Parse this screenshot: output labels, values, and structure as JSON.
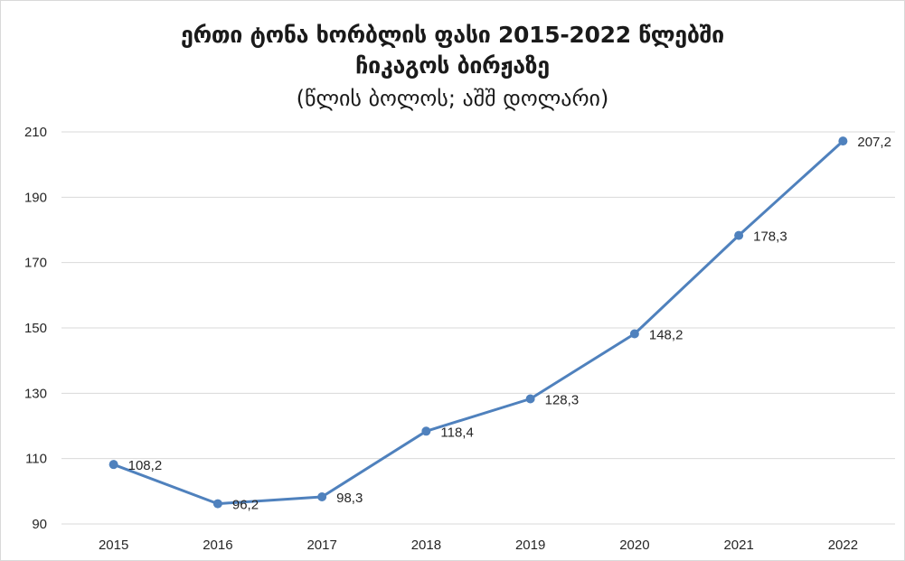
{
  "chart_data": {
    "type": "line",
    "title_line1": "ერთი ტონა ხორბლის ფასი 2015-2022 წლებში",
    "title_line2": "ჩიკაგოს ბირჟაზე",
    "subtitle": "(წლის ბოლოს; აშშ დოლარი)",
    "xlabel": "",
    "ylabel": "",
    "categories": [
      "2015",
      "2016",
      "2017",
      "2018",
      "2019",
      "2020",
      "2021",
      "2022"
    ],
    "series": [
      {
        "values": [
          108.2,
          96.2,
          98.3,
          118.4,
          128.3,
          148.2,
          178.3,
          207.2
        ],
        "labels": [
          "108,2",
          "96,2",
          "98,3",
          "118,4",
          "128,3",
          "148,2",
          "178,3",
          "207,2"
        ],
        "color": "#4f81bd"
      }
    ],
    "ylim": [
      90,
      210
    ],
    "yticks": [
      "90",
      "110",
      "130",
      "150",
      "170",
      "190",
      "210"
    ],
    "grid": true,
    "gridline_color": "#d9d9d9",
    "legend": "none"
  }
}
